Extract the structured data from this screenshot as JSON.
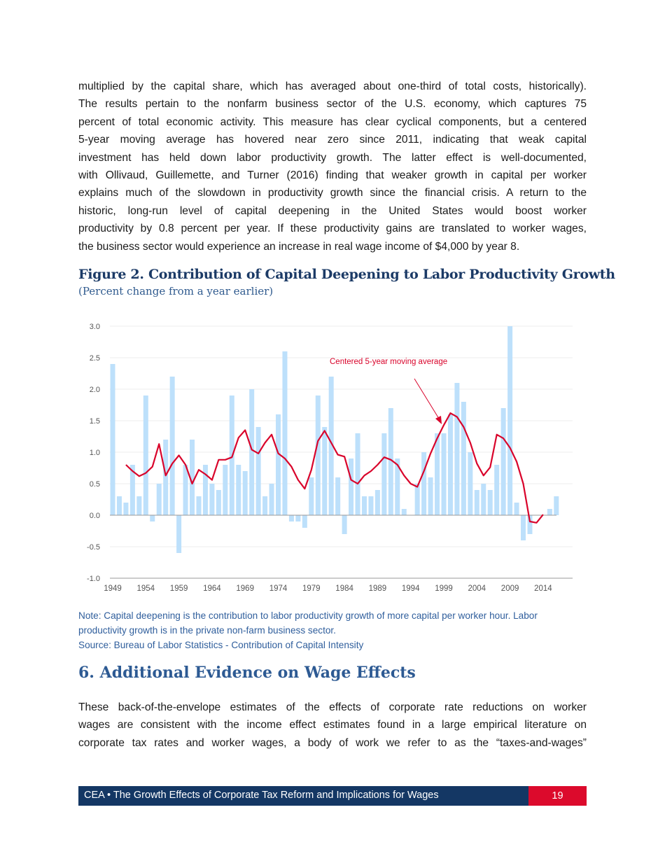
{
  "body_top": {
    "lines": [
      "multiplied by the capital share, which has averaged about one-third of total costs, historically).",
      "The results pertain to the nonfarm business sector of the U.S. economy, which captures 75",
      "percent of total economic activity. This measure has clear cyclical components, but a centered",
      "5-year moving average has hovered near zero since 2011, indicating that weak capital",
      "investment has held down labor productivity growth. The latter effect is well-documented,",
      "with Ollivaud, Guillemette, and Turner (2016) finding that weaker growth in capital per worker",
      "explains much of the slowdown in productivity growth since the financial crisis. A return to the",
      "historic, long-run level of capital deepening in the United States would boost worker",
      "productivity by 0.8 percent per year. If these productivity gains are translated to worker wages,",
      "the business sector would experience an increase in real wage income of $4,000 by year 8."
    ]
  },
  "figure": {
    "title": "Figure 2. Contribution of Capital Deepening to Labor Productivity Growth",
    "subtitle": "(Percent change from a year earlier)",
    "note_line1": "Note: Capital deepening is the contribution to labor productivity growth of more capital per worker hour. Labor",
    "note_line2": "productivity growth is in the private non-farm business sector.",
    "source": "Source: Bureau of Labor Statistics - Contribution of Capital Intensity"
  },
  "chart_data": {
    "type": "bar",
    "title": "",
    "xlabel": "",
    "ylabel": "",
    "ylim": [
      -1.0,
      3.0
    ],
    "yticks": [
      "3.0",
      "2.5",
      "2.0",
      "1.5",
      "1.0",
      "0.5",
      "0.0",
      "-0.5",
      "-1.0"
    ],
    "xtick_labels": [
      "1949",
      "1954",
      "1959",
      "1964",
      "1969",
      "1974",
      "1979",
      "1984",
      "1989",
      "1994",
      "1999",
      "2004",
      "2009",
      "2014"
    ],
    "grid": true,
    "bar_color": "#bde0fb",
    "line_color": "#d9042b",
    "annotation": "Centered 5-year moving average",
    "x": [
      1949,
      1950,
      1951,
      1952,
      1953,
      1954,
      1955,
      1956,
      1957,
      1958,
      1959,
      1960,
      1961,
      1962,
      1963,
      1964,
      1965,
      1966,
      1967,
      1968,
      1969,
      1970,
      1971,
      1972,
      1973,
      1974,
      1975,
      1976,
      1977,
      1978,
      1979,
      1980,
      1981,
      1982,
      1983,
      1984,
      1985,
      1986,
      1987,
      1988,
      1989,
      1990,
      1991,
      1992,
      1993,
      1994,
      1995,
      1996,
      1997,
      1998,
      1999,
      2000,
      2001,
      2002,
      2003,
      2004,
      2005,
      2006,
      2007,
      2008,
      2009,
      2010,
      2011,
      2012,
      2013,
      2014,
      2015,
      2016
    ],
    "values": [
      2.4,
      0.3,
      0.2,
      0.8,
      0.3,
      1.9,
      -0.1,
      0.5,
      1.2,
      2.2,
      -0.6,
      0.8,
      1.2,
      0.3,
      0.8,
      0.5,
      0.4,
      0.8,
      1.9,
      0.8,
      0.7,
      2.0,
      1.4,
      0.3,
      0.5,
      1.6,
      2.6,
      -0.1,
      -0.1,
      -0.2,
      0.6,
      1.9,
      1.4,
      2.2,
      0.6,
      -0.3,
      0.9,
      1.3,
      0.3,
      0.3,
      0.4,
      1.3,
      1.7,
      0.9,
      0.1,
      0.0,
      0.5,
      1.0,
      0.6,
      1.3,
      1.3,
      1.6,
      2.1,
      1.8,
      1.0,
      0.4,
      0.5,
      0.4,
      0.8,
      1.7,
      3.0,
      0.2,
      -0.4,
      -0.3,
      0.0,
      0.0,
      0.1,
      0.3
    ],
    "moving_average": {
      "x": [
        1951,
        1952,
        1953,
        1954,
        1955,
        1956,
        1957,
        1958,
        1959,
        1960,
        1961,
        1962,
        1963,
        1964,
        1965,
        1966,
        1967,
        1968,
        1969,
        1970,
        1971,
        1972,
        1973,
        1974,
        1975,
        1976,
        1977,
        1978,
        1979,
        1980,
        1981,
        1982,
        1983,
        1984,
        1985,
        1986,
        1987,
        1988,
        1989,
        1990,
        1991,
        1992,
        1993,
        1994,
        1995,
        1996,
        1997,
        1998,
        1999,
        2000,
        2001,
        2002,
        2003,
        2004,
        2005,
        2006,
        2007,
        2008,
        2009,
        2010,
        2011,
        2012,
        2013,
        2014
      ],
      "values": [
        0.8,
        0.7,
        0.62,
        0.67,
        0.77,
        1.13,
        0.63,
        0.82,
        0.95,
        0.8,
        0.5,
        0.72,
        0.65,
        0.56,
        0.88,
        0.88,
        0.92,
        1.23,
        1.35,
        1.04,
        0.98,
        1.15,
        1.28,
        0.98,
        0.9,
        0.77,
        0.56,
        0.42,
        0.72,
        1.18,
        1.34,
        1.15,
        0.96,
        0.93,
        0.56,
        0.5,
        0.63,
        0.7,
        0.8,
        0.92,
        0.88,
        0.8,
        0.63,
        0.5,
        0.45,
        0.7,
        0.98,
        1.22,
        1.43,
        1.62,
        1.56,
        1.4,
        1.15,
        0.82,
        0.63,
        0.76,
        1.28,
        1.22,
        1.07,
        0.85,
        0.5,
        -0.1,
        -0.12,
        0.01
      ]
    }
  },
  "section": {
    "heading": "6. Additional Evidence on Wage Effects"
  },
  "body_bottom": {
    "lines": [
      "These back-of-the-envelope estimates of the effects of corporate rate reductions on worker",
      "wages are consistent with the income effect estimates found in a large empirical literature on",
      "corporate tax rates and worker wages, a body of work we refer to as the “taxes-and-wages”"
    ]
  },
  "footer": {
    "text": "CEA • The Growth Effects of Corporate Tax Reform and Implications for Wages",
    "page": "19"
  }
}
